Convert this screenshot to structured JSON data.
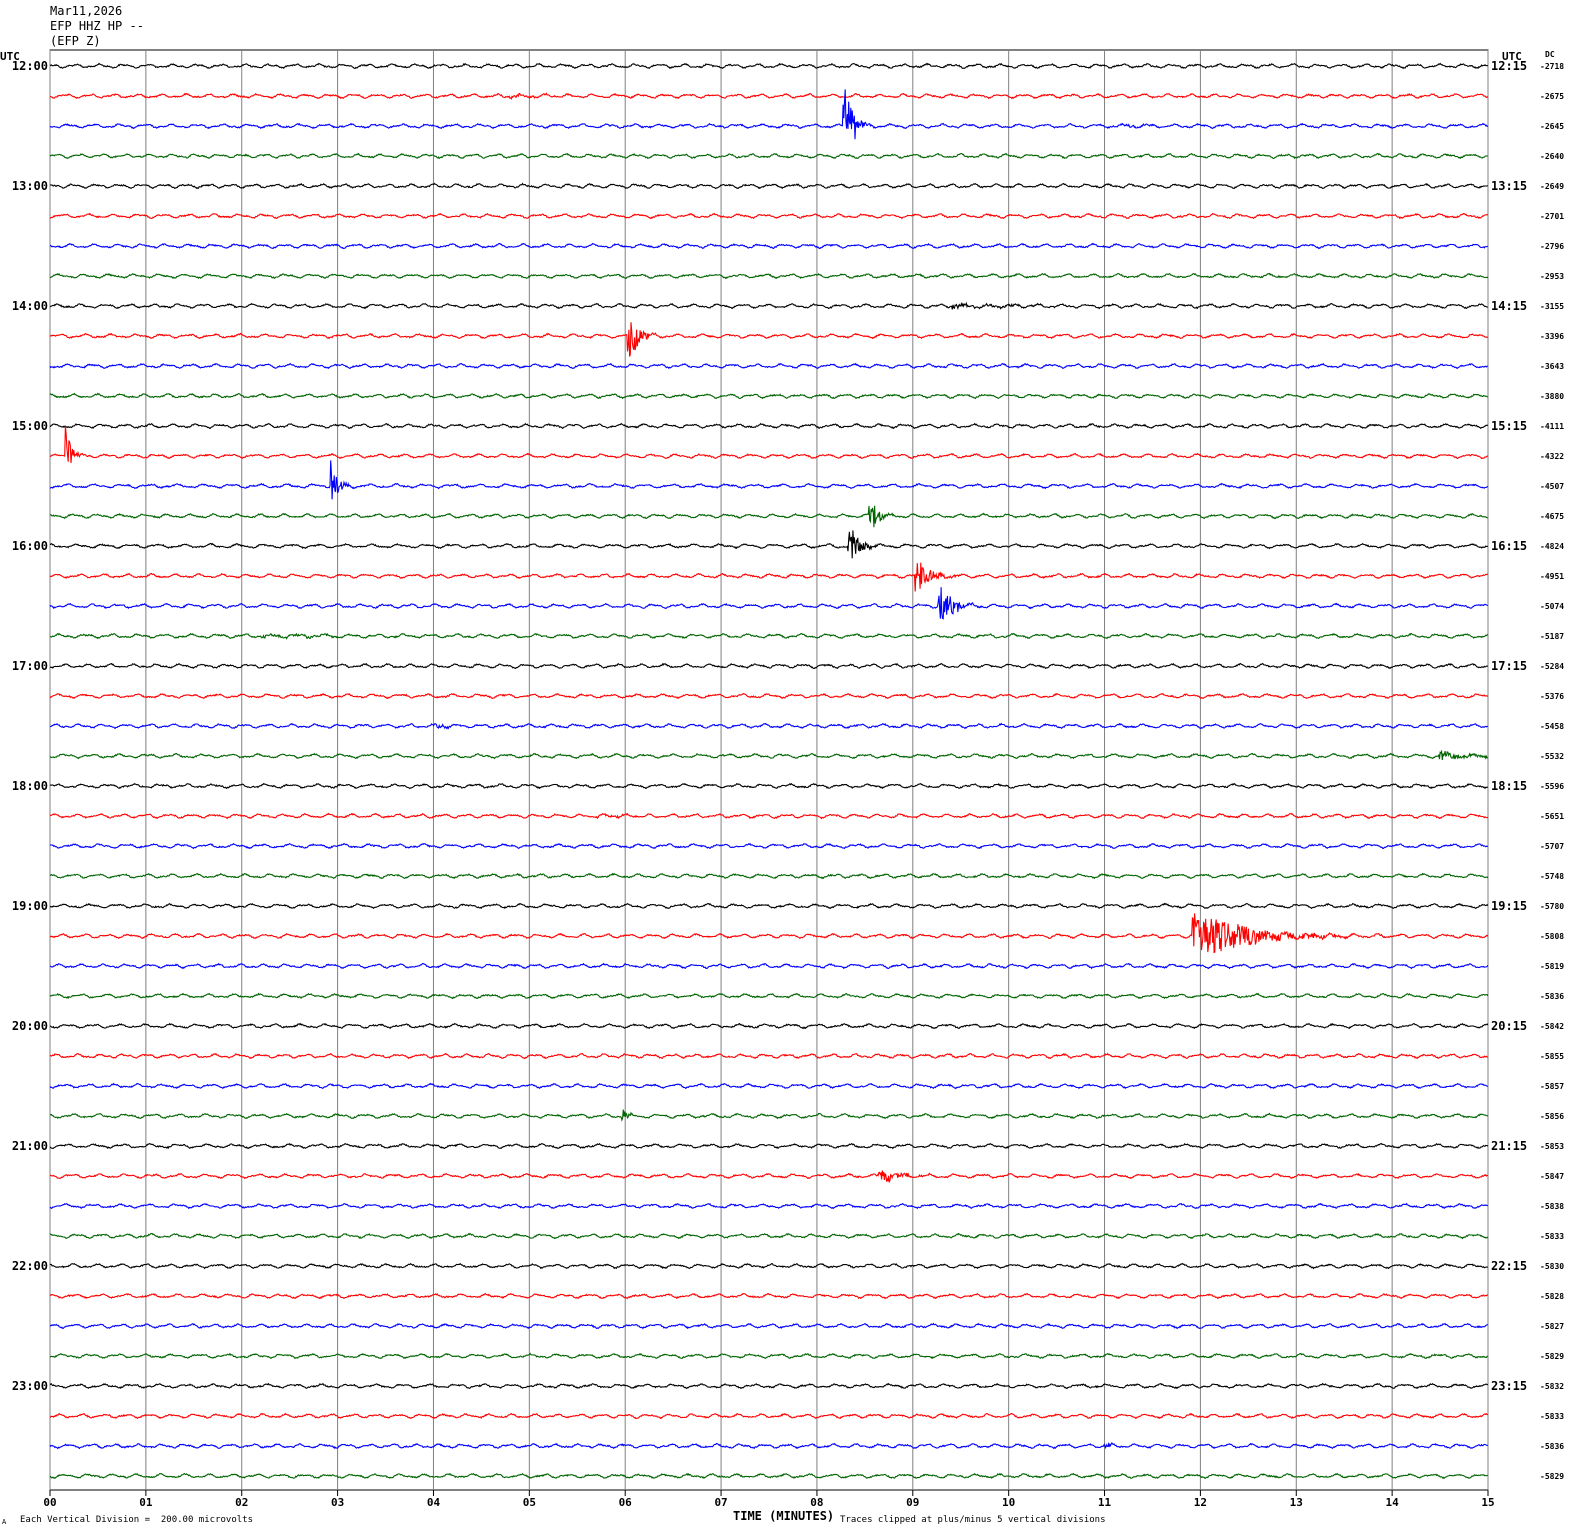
{
  "header": {
    "date": "Mar11,2026",
    "station": "EFP HHZ HP --",
    "channel": "(EFP Z)"
  },
  "utc_label_left": "UTC",
  "utc_label_right": "UTC",
  "dc_label": "DC",
  "footer": {
    "scale_note": "Each Vertical Division =  200.00 microvolts",
    "clip_note": "Traces clipped at plus/minus 5 vertical divisions",
    "corner_mark": "A"
  },
  "chart_data": {
    "type": "line",
    "xlabel": "TIME (MINUTES)",
    "xlim": [
      0,
      15
    ],
    "x_ticks": [
      "00",
      "01",
      "02",
      "03",
      "04",
      "05",
      "06",
      "07",
      "08",
      "09",
      "10",
      "11",
      "12",
      "13",
      "14",
      "15"
    ],
    "rows_per_hour": 4,
    "trace_colors": [
      "#000000",
      "#ff0000",
      "#0000ff",
      "#006400"
    ],
    "left_hour_labels": [
      "12:00",
      "13:00",
      "14:00",
      "15:00",
      "16:00",
      "17:00",
      "18:00",
      "19:00",
      "20:00",
      "21:00",
      "22:00",
      "23:00"
    ],
    "right_hour_labels": [
      "12:15",
      "13:15",
      "14:15",
      "15:15",
      "16:15",
      "17:15",
      "18:15",
      "19:15",
      "20:15",
      "21:15",
      "22:15",
      "23:15"
    ],
    "dc_offsets": [
      "-2718",
      "-2675",
      "-2645",
      "-2640",
      "-2649",
      "-2701",
      "-2796",
      "-2953",
      "-3155",
      "-3396",
      "-3643",
      "-3880",
      "-4111",
      "-4322",
      "-4507",
      "-4675",
      "-4824",
      "-4951",
      "-5074",
      "-5187",
      "-5284",
      "-5376",
      "-5458",
      "-5532",
      "-5596",
      "-5651",
      "-5707",
      "-5748",
      "-5780",
      "-5808",
      "-5819",
      "-5836",
      "-5842",
      "-5855",
      "-5857",
      "-5856",
      "-5853",
      "-5847",
      "-5838",
      "-5833",
      "-5830",
      "-5828",
      "-5827",
      "-5829",
      "-5832",
      "-5833",
      "-5836",
      "-5829"
    ],
    "events": [
      {
        "row": 2,
        "minute": 8.28,
        "amplitude_div": 10,
        "duration_min": 0.12
      },
      {
        "row": 9,
        "minute": 6.03,
        "amplitude_div": 5,
        "duration_min": 0.15
      },
      {
        "row": 13,
        "minute": 0.17,
        "amplitude_div": 5,
        "duration_min": 0.1
      },
      {
        "row": 14,
        "minute": 2.93,
        "amplitude_div": 5,
        "duration_min": 0.1
      },
      {
        "row": 15,
        "minute": 8.55,
        "amplitude_div": 3.5,
        "duration_min": 0.12
      },
      {
        "row": 16,
        "minute": 8.33,
        "amplitude_div": 4,
        "duration_min": 0.15
      },
      {
        "row": 17,
        "minute": 9.03,
        "amplitude_div": 4,
        "duration_min": 0.2
      },
      {
        "row": 18,
        "minute": 9.27,
        "amplitude_div": 4,
        "duration_min": 0.2
      },
      {
        "row": 29,
        "minute": 11.92,
        "amplitude_div": 5,
        "duration_min": 0.8
      },
      {
        "row": 35,
        "minute": 5.97,
        "amplitude_div": 1.5,
        "duration_min": 0.08
      },
      {
        "row": 37,
        "minute": 8.65,
        "amplitude_div": 1.2,
        "duration_min": 0.3
      },
      {
        "row": 46,
        "minute": 11.0,
        "amplitude_div": 0.5,
        "duration_min": 0.1
      },
      {
        "row": 23,
        "minute": 14.5,
        "amplitude_div": 0.8,
        "duration_min": 0.4
      },
      {
        "row": 8,
        "minute": 9.4,
        "amplitude_div": 0.4,
        "duration_min": 0.9
      },
      {
        "row": 19,
        "minute": 2.2,
        "amplitude_div": 0.3,
        "duration_min": 0.9
      },
      {
        "row": 22,
        "minute": 4.0,
        "amplitude_div": 0.5,
        "duration_min": 0.2
      },
      {
        "row": 25,
        "minute": 5.7,
        "amplitude_div": 0.3,
        "duration_min": 0.4
      },
      {
        "row": 1,
        "minute": 4.8,
        "amplitude_div": 0.3,
        "duration_min": 0.6
      },
      {
        "row": 2,
        "minute": 11.2,
        "amplitude_div": 0.4,
        "duration_min": 0.2
      }
    ]
  }
}
